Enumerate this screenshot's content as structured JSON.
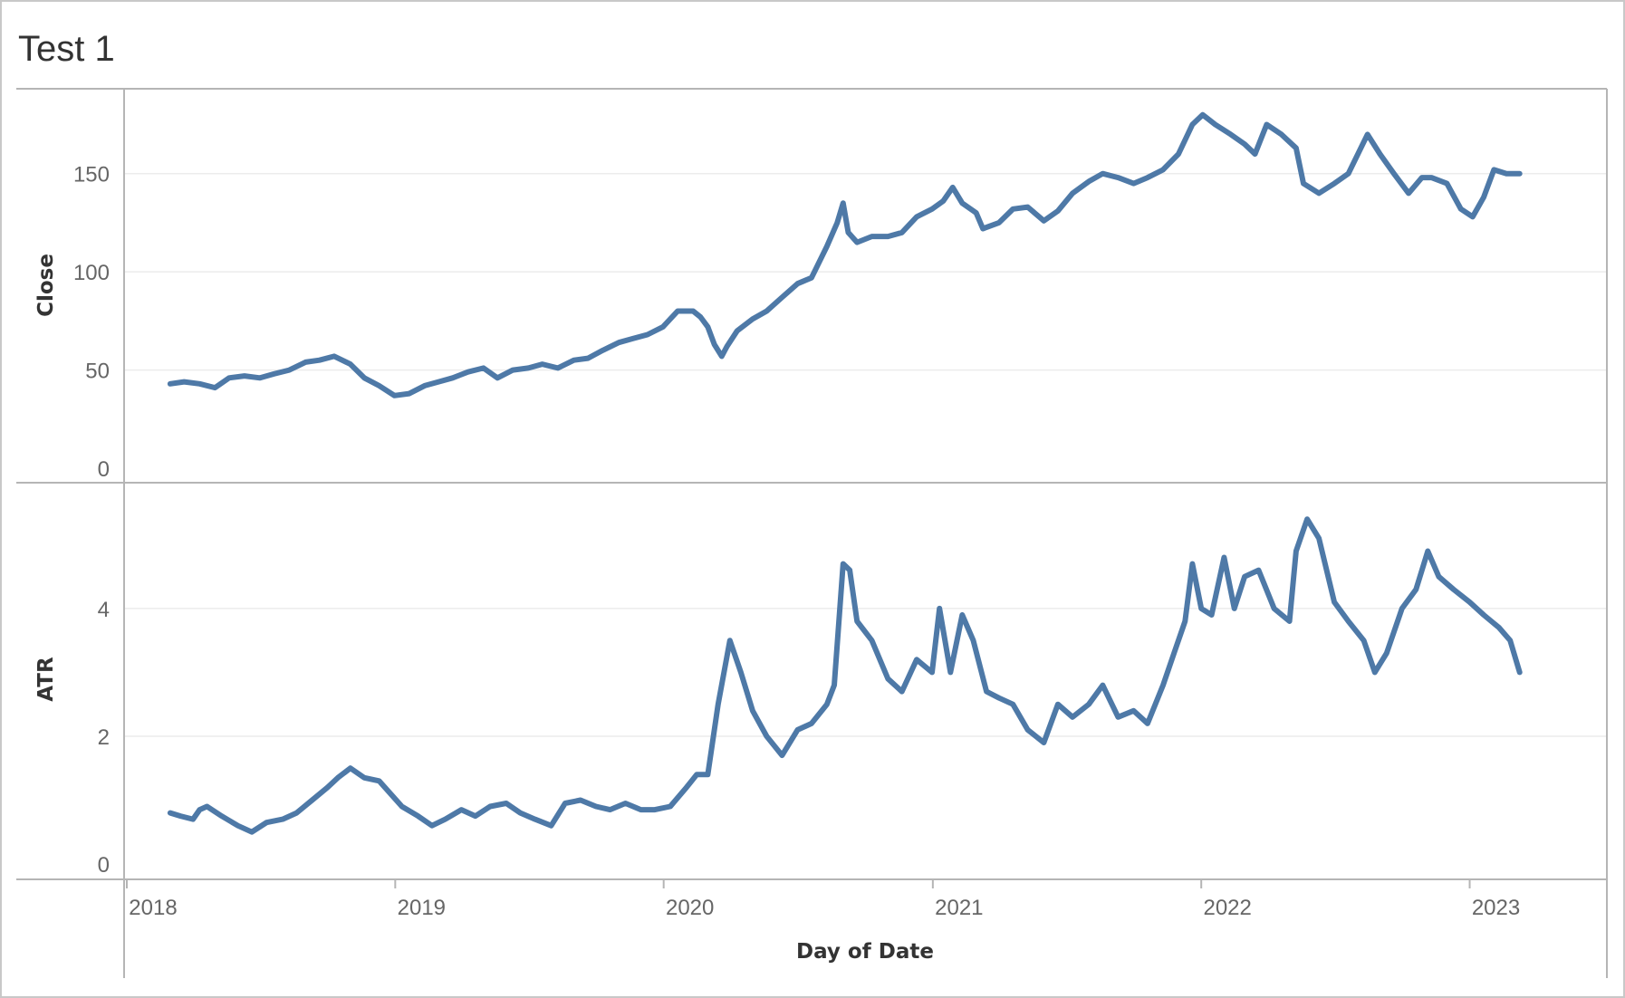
{
  "title": "Test 1",
  "colors": {
    "series": "#4e79a7",
    "frame": "#c8c8c8",
    "grid": "#ececec"
  },
  "chart_data": {
    "type": "line",
    "title": "Test 1",
    "xlabel": "Day of Date",
    "x_ticks": [
      "2018",
      "2019",
      "2020",
      "2021",
      "2022",
      "2023"
    ],
    "x_range": [
      "2018-01-01",
      "2023-06-07"
    ],
    "grid": true,
    "panes": [
      {
        "ylabel": "Close",
        "ylim": [
          0,
          190
        ],
        "y_ticks": [
          "0",
          "50",
          "100",
          "150"
        ],
        "series": [
          {
            "x": [
              "2018-03-01",
              "2018-03-20",
              "2018-04-10",
              "2018-05-01",
              "2018-05-20",
              "2018-06-10",
              "2018-07-01",
              "2018-07-20",
              "2018-08-10",
              "2018-09-01",
              "2018-09-20",
              "2018-10-10",
              "2018-11-01",
              "2018-11-20",
              "2018-12-10",
              "2018-12-31",
              "2019-01-20",
              "2019-02-10",
              "2019-03-01",
              "2019-03-20",
              "2019-04-10",
              "2019-05-01",
              "2019-05-20",
              "2019-06-10",
              "2019-07-01",
              "2019-07-20",
              "2019-08-10",
              "2019-09-01",
              "2019-09-20",
              "2019-10-10",
              "2019-11-01",
              "2019-11-20",
              "2019-12-10",
              "2019-12-31",
              "2020-01-20",
              "2020-02-10",
              "2020-02-20",
              "2020-03-01",
              "2020-03-10",
              "2020-03-20",
              "2020-03-27",
              "2020-04-10",
              "2020-05-01",
              "2020-05-20",
              "2020-06-10",
              "2020-07-01",
              "2020-07-20",
              "2020-08-10",
              "2020-08-24",
              "2020-09-01",
              "2020-09-08",
              "2020-09-20",
              "2020-10-10",
              "2020-11-01",
              "2020-11-20",
              "2020-12-10",
              "2020-12-31",
              "2021-01-15",
              "2021-01-28",
              "2021-02-10",
              "2021-03-01",
              "2021-03-10",
              "2021-04-01",
              "2021-04-20",
              "2021-05-10",
              "2021-06-01",
              "2021-06-20",
              "2021-07-10",
              "2021-08-01",
              "2021-08-20",
              "2021-09-10",
              "2021-10-01",
              "2021-10-20",
              "2021-11-10",
              "2021-12-01",
              "2021-12-20",
              "2022-01-03",
              "2022-01-20",
              "2022-02-10",
              "2022-03-01",
              "2022-03-15",
              "2022-03-31",
              "2022-04-20",
              "2022-05-10",
              "2022-05-20",
              "2022-06-10",
              "2022-07-01",
              "2022-07-20",
              "2022-08-15",
              "2022-09-01",
              "2022-09-20",
              "2022-10-10",
              "2022-10-28",
              "2022-11-10",
              "2022-12-01",
              "2022-12-20",
              "2023-01-05",
              "2023-01-20",
              "2023-02-03",
              "2023-02-20",
              "2023-03-10"
            ],
            "y": [
              43,
              44,
              43,
              41,
              46,
              47,
              46,
              48,
              50,
              54,
              55,
              57,
              53,
              46,
              42,
              37,
              38,
              42,
              44,
              46,
              49,
              51,
              46,
              50,
              51,
              53,
              51,
              55,
              56,
              60,
              64,
              66,
              68,
              72,
              80,
              80,
              77,
              72,
              63,
              57,
              62,
              70,
              76,
              80,
              87,
              94,
              97,
              113,
              125,
              135,
              120,
              115,
              118,
              118,
              120,
              128,
              132,
              136,
              143,
              135,
              130,
              122,
              125,
              132,
              133,
              126,
              131,
              140,
              146,
              150,
              148,
              145,
              148,
              152,
              160,
              175,
              180,
              175,
              170,
              165,
              160,
              175,
              170,
              163,
              145,
              140,
              145,
              150,
              170,
              160,
              150,
              140,
              148,
              148,
              145,
              132,
              128,
              138,
              152,
              150,
              150
            ]
          }
        ]
      },
      {
        "ylabel": "ATR",
        "ylim": [
          0,
          5.8
        ],
        "y_ticks": [
          "0",
          "2",
          "4"
        ],
        "series": [
          {
            "x": [
              "2018-03-01",
              "2018-03-15",
              "2018-04-01",
              "2018-04-10",
              "2018-04-20",
              "2018-05-10",
              "2018-06-01",
              "2018-06-20",
              "2018-07-10",
              "2018-08-01",
              "2018-08-20",
              "2018-09-10",
              "2018-10-01",
              "2018-10-15",
              "2018-11-01",
              "2018-11-20",
              "2018-12-10",
              "2019-01-10",
              "2019-02-01",
              "2019-02-20",
              "2019-03-10",
              "2019-04-01",
              "2019-04-20",
              "2019-05-10",
              "2019-06-01",
              "2019-06-20",
              "2019-07-10",
              "2019-08-01",
              "2019-08-20",
              "2019-09-10",
              "2019-10-01",
              "2019-10-20",
              "2019-11-10",
              "2019-12-01",
              "2019-12-20",
              "2020-01-10",
              "2020-02-01",
              "2020-02-15",
              "2020-03-01",
              "2020-03-15",
              "2020-03-31",
              "2020-04-15",
              "2020-05-01",
              "2020-05-20",
              "2020-06-10",
              "2020-07-01",
              "2020-07-20",
              "2020-08-10",
              "2020-08-20",
              "2020-09-01",
              "2020-09-10",
              "2020-09-20",
              "2020-10-10",
              "2020-11-01",
              "2020-11-20",
              "2020-12-10",
              "2020-12-31",
              "2021-01-10",
              "2021-01-25",
              "2021-02-10",
              "2021-02-25",
              "2021-03-15",
              "2021-04-01",
              "2021-04-20",
              "2021-05-10",
              "2021-06-01",
              "2021-06-20",
              "2021-07-10",
              "2021-08-01",
              "2021-08-20",
              "2021-09-10",
              "2021-10-01",
              "2021-10-20",
              "2021-11-10",
              "2021-11-25",
              "2021-12-10",
              "2021-12-20",
              "2022-01-01",
              "2022-01-15",
              "2022-02-01",
              "2022-02-15",
              "2022-03-01",
              "2022-03-20",
              "2022-04-10",
              "2022-05-01",
              "2022-05-10",
              "2022-05-25",
              "2022-06-10",
              "2022-07-01",
              "2022-07-20",
              "2022-08-10",
              "2022-08-25",
              "2022-09-10",
              "2022-10-01",
              "2022-10-20",
              "2022-11-05",
              "2022-11-20",
              "2022-12-10",
              "2023-01-01",
              "2023-01-20",
              "2023-02-10",
              "2023-02-25",
              "2023-03-10"
            ],
            "y": [
              0.8,
              0.75,
              0.7,
              0.85,
              0.9,
              0.75,
              0.6,
              0.5,
              0.65,
              0.7,
              0.8,
              1.0,
              1.2,
              1.35,
              1.5,
              1.35,
              1.3,
              0.9,
              0.75,
              0.6,
              0.7,
              0.85,
              0.75,
              0.9,
              0.95,
              0.8,
              0.7,
              0.6,
              0.95,
              1.0,
              0.9,
              0.85,
              0.95,
              0.85,
              0.85,
              0.9,
              1.2,
              1.4,
              1.4,
              2.5,
              3.5,
              3.0,
              2.4,
              2.0,
              1.7,
              2.1,
              2.2,
              2.5,
              2.8,
              4.7,
              4.6,
              3.8,
              3.5,
              2.9,
              2.7,
              3.2,
              3.0,
              4.0,
              3.0,
              3.9,
              3.5,
              2.7,
              2.6,
              2.5,
              2.1,
              1.9,
              2.5,
              2.3,
              2.5,
              2.8,
              2.3,
              2.4,
              2.2,
              2.8,
              3.3,
              3.8,
              4.7,
              4.0,
              3.9,
              4.8,
              4.0,
              4.5,
              4.6,
              4.0,
              3.8,
              4.9,
              5.4,
              5.1,
              4.1,
              3.8,
              3.5,
              3.0,
              3.3,
              4.0,
              4.3,
              4.9,
              4.5,
              4.3,
              4.1,
              3.9,
              3.7,
              3.5,
              3.0
            ]
          }
        ]
      }
    ]
  }
}
